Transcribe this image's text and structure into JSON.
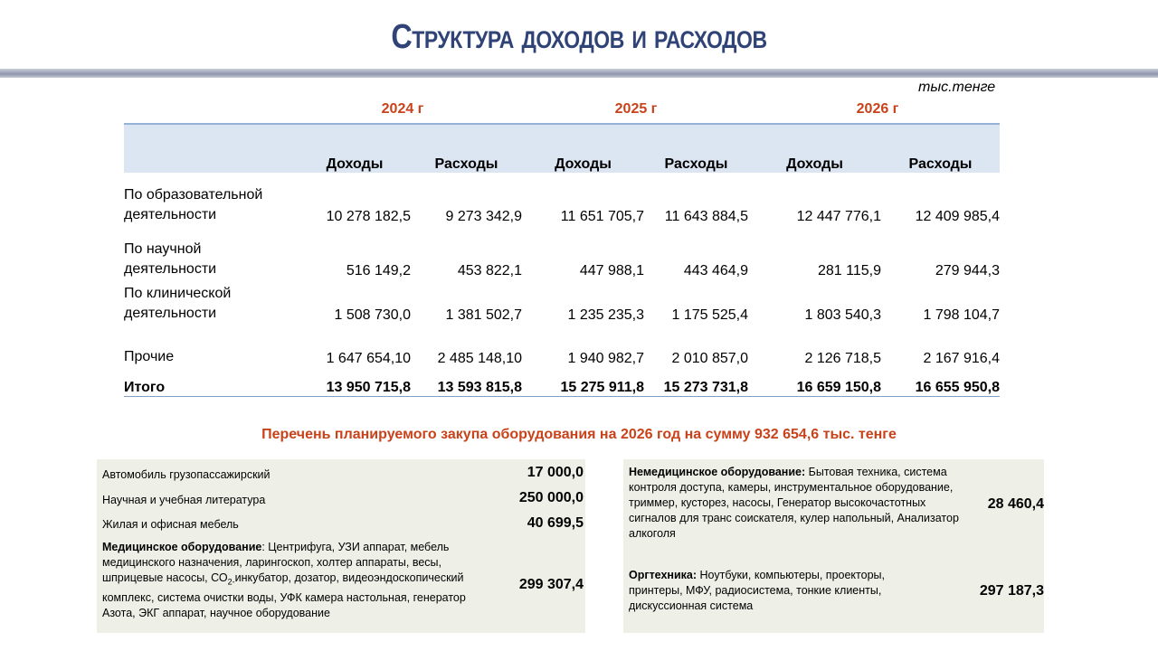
{
  "title": "Структура доходов и расходов",
  "unit": "тыс.тенге",
  "years": [
    "2024 г",
    "2025 г",
    "2026 г"
  ],
  "columns": [
    "Доходы",
    "Расходы",
    "Доходы",
    "Расходы",
    "Доходы",
    "Расходы"
  ],
  "rows": [
    {
      "label": [
        "По образовательной",
        "деятельности"
      ],
      "values": [
        "10 278 182,5",
        "9 273 342,9",
        "11 651 705,7",
        "11 643 884,5",
        "12 447 776,1",
        "12 409 985,4"
      ]
    },
    {
      "label": [
        "По научной",
        "деятельности"
      ],
      "values": [
        "516 149,2",
        "453 822,1",
        "447 988,1",
        "443 464,9",
        "281 115,9",
        "279 944,3"
      ]
    },
    {
      "label": [
        "По клинической",
        "деятельности"
      ],
      "values": [
        "1 508 730,0",
        "1 381 502,7",
        "1 235 235,3",
        "1 175 525,4",
        "1 803 540,3",
        "1 798 104,7"
      ]
    },
    {
      "label": [
        "Прочие",
        ""
      ],
      "values": [
        "1 647 654,10",
        "2 485 148,10",
        "1 940 982,7",
        "2 010 857,0",
        "2 126 718,5",
        "2 167 916,4"
      ]
    }
  ],
  "total": {
    "label": "Итого",
    "values": [
      "13 950 715,8",
      "13 593 815,8",
      "15 275 911,8",
      "15 273 731,8",
      "16 659 150,8",
      "16 655 950,8"
    ]
  },
  "subtitle": "Перечень планируемого закупа оборудования  на 2026 год на сумму 932 654,6 тыс. тенге",
  "left_items": [
    {
      "text": "Автомобиль грузопассажирский",
      "value": "17 000,0"
    },
    {
      "text": "Научная и учебная литература",
      "value": "250 000,0"
    },
    {
      "text": "Жилая и офисная мебель",
      "value": "40 699,5"
    },
    {
      "bold": "Медицинское оборудование",
      "text_a": ": Центрифуга, УЗИ аппарат, мебель медицинского назначения, ларингоскоп, холтер аппараты, весы, шприцевые насосы, СО",
      "sub": "2-",
      "text_b": "инкубатор,  дозатор, видеоэндоскопический комплекс, система очистки воды, УФК камера настольная, генератор Азота, ЭКГ аппарат, научное оборудование",
      "value": "299 307,4"
    }
  ],
  "right_items": [
    {
      "bold": "Немедицинское оборудование:",
      "text": " Бытовая техника, система контроля доступа, камеры, инструментальное оборудование, триммер, кусторез, насосы, Генератор высокочастотных сигналов для транс соискателя, кулер напольный, Анализатор алкоголя",
      "value": "28 460,4"
    },
    {
      "bold": "Оргтехника:",
      "text": " Ноутбуки, компьютеры, проекторы, принтеры, МФУ, радиосистема, тонкие клиенты, дискуссионная система",
      "value": "297 187,3"
    }
  ]
}
